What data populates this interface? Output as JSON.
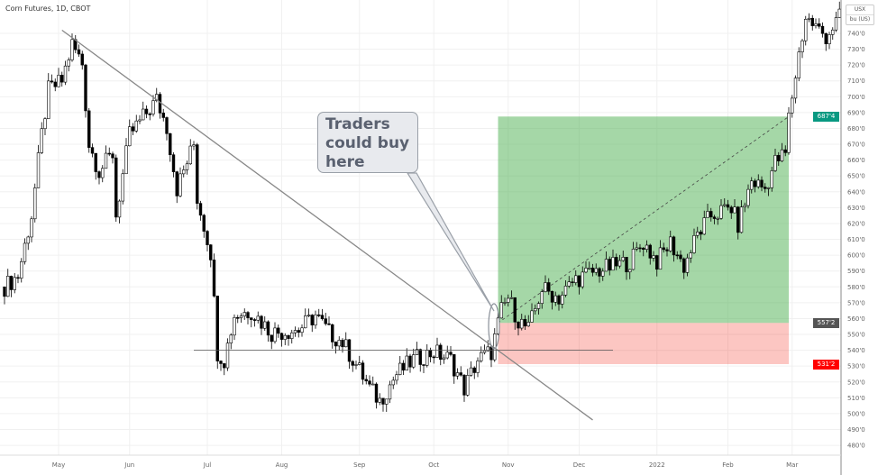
{
  "header": {
    "title": "Corn Futures, 1D, CBOT",
    "currency": "USX",
    "unit": "bu (US)"
  },
  "annotation": {
    "callout_text": "Traders could buy here"
  },
  "price_labels": {
    "target": "687'4",
    "entry": "557'2",
    "stop": "531'2",
    "target_color": "#089981",
    "entry_color": "#555555",
    "stop_color": "#ff0000"
  },
  "chart_data": {
    "type": "candlestick",
    "title": "Corn Futures, 1D, CBOT",
    "ylabel": "USX / bu (US)",
    "ylim": [
      475,
      752
    ],
    "yticks": [
      480,
      490,
      500,
      510,
      520,
      530,
      540,
      550,
      560,
      570,
      580,
      590,
      600,
      610,
      620,
      630,
      640,
      650,
      660,
      670,
      680,
      690,
      700,
      710,
      720,
      730,
      740
    ],
    "xtick_labels": [
      {
        "label": "May",
        "day": 16
      },
      {
        "label": "Jun",
        "day": 37
      },
      {
        "label": "Jul",
        "day": 60
      },
      {
        "label": "Aug",
        "day": 82
      },
      {
        "label": "Sep",
        "day": 105
      },
      {
        "label": "Oct",
        "day": 127
      },
      {
        "label": "Nov",
        "day": 149
      },
      {
        "label": "Dec",
        "day": 170
      },
      {
        "label": "2022",
        "day": 193
      },
      {
        "label": "Feb",
        "day": 214
      },
      {
        "label": "Mar",
        "day": 233
      }
    ],
    "close_path": [
      [
        0,
        580
      ],
      [
        4,
        587
      ],
      [
        8,
        625
      ],
      [
        11,
        676
      ],
      [
        13,
        704
      ],
      [
        17,
        710
      ],
      [
        20,
        733
      ],
      [
        23,
        721
      ],
      [
        25,
        670
      ],
      [
        28,
        653
      ],
      [
        32,
        664
      ],
      [
        33,
        625
      ],
      [
        37,
        676
      ],
      [
        41,
        687
      ],
      [
        45,
        698
      ],
      [
        48,
        681
      ],
      [
        51,
        642
      ],
      [
        56,
        670
      ],
      [
        57,
        636
      ],
      [
        59,
        619
      ],
      [
        61,
        602
      ],
      [
        63,
        539
      ],
      [
        65,
        534
      ],
      [
        68,
        562
      ],
      [
        73,
        565
      ],
      [
        79,
        551
      ],
      [
        87,
        553
      ],
      [
        92,
        562
      ],
      [
        96,
        551
      ],
      [
        100,
        545
      ],
      [
        104,
        531
      ],
      [
        108,
        516
      ],
      [
        111,
        508
      ],
      [
        116,
        525
      ],
      [
        121,
        534
      ],
      [
        127,
        539
      ],
      [
        132,
        534
      ],
      [
        136,
        516
      ],
      [
        140,
        534
      ],
      [
        144,
        539
      ],
      [
        147,
        565
      ],
      [
        149,
        573
      ],
      [
        152,
        559
      ],
      [
        155,
        553
      ],
      [
        159,
        579
      ],
      [
        164,
        573
      ],
      [
        169,
        585
      ],
      [
        175,
        590
      ],
      [
        180,
        593
      ],
      [
        185,
        596
      ],
      [
        189,
        608
      ],
      [
        193,
        596
      ],
      [
        197,
        608
      ],
      [
        201,
        593
      ],
      [
        205,
        613
      ],
      [
        209,
        625
      ],
      [
        215,
        630
      ],
      [
        217,
        619
      ],
      [
        221,
        647
      ],
      [
        225,
        642
      ],
      [
        228,
        659
      ],
      [
        231,
        664
      ],
      [
        232,
        687
      ],
      [
        235,
        727
      ],
      [
        237,
        750
      ],
      [
        243,
        738
      ],
      [
        247,
        750
      ]
    ],
    "trendline": {
      "from": [
        17,
        742
      ],
      "to": [
        174,
        496
      ]
    },
    "support_line": {
      "price": 540,
      "from_day": 56,
      "to_day": 180
    },
    "position": {
      "entry": 557.25,
      "target": 687.5,
      "stop": 531.25,
      "from_day": 146,
      "to_day": 232
    }
  }
}
